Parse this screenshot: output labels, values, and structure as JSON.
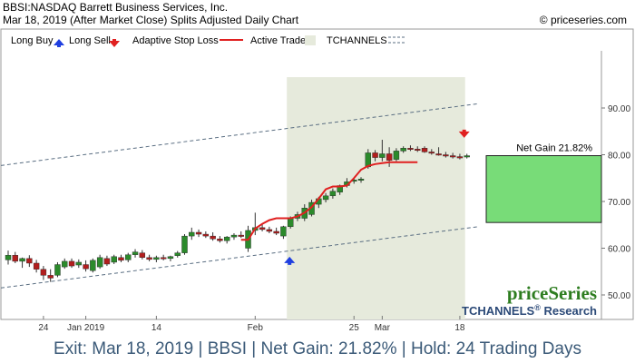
{
  "header": {
    "title": "BBSI:NASDAQ Barrett Business Services, Inc.",
    "subtitle": "Mar 18, 2019 (After Market Close)  Splits Adjusted Daily Chart",
    "copyright": "© priceseries.com"
  },
  "legend": {
    "items": [
      {
        "label": "Long Buy",
        "icon": "up-arrow-icon",
        "color": "#1f3fe0"
      },
      {
        "label": "Long Sell",
        "icon": "down-arrow-icon",
        "color": "#e02020"
      },
      {
        "label": "Adaptive Stop Loss",
        "icon": "red-line-icon",
        "color": "#e02020"
      },
      {
        "label": "Active Trade",
        "icon": "shaded-box-icon",
        "color": "#e6eadc"
      },
      {
        "label": "TCHANNELS",
        "icon": "dashed-line-icon",
        "color": "#5a6e82"
      }
    ]
  },
  "brand": {
    "name": "priceSeries",
    "tagline": "TCHANNELS",
    "tagline_reg": "®",
    "tagline_suffix": " Research"
  },
  "footer": {
    "text": "Exit: Mar 18, 2019 | BBSI | Net Gain: 21.82% | Hold: 24 Trading Days"
  },
  "chart_data": {
    "type": "candlestick",
    "y_axis": {
      "ticks": [
        50,
        60,
        70,
        80,
        90
      ],
      "tick_labels": [
        "50.00",
        "60.00",
        "70.00",
        "80.00",
        "90.00"
      ],
      "side": "right",
      "range": [
        45,
        100
      ]
    },
    "x_axis": {
      "labels": [
        {
          "label": "24",
          "index": 5
        },
        {
          "label": "Jan 2019",
          "index": 11
        },
        {
          "label": "14",
          "index": 21
        },
        {
          "label": "Feb",
          "index": 35
        },
        {
          "label": "25",
          "index": 49
        },
        {
          "label": "Mar",
          "index": 53
        },
        {
          "label": "18",
          "index": 64
        }
      ]
    },
    "candles": [
      {
        "o": 57.5,
        "h": 59.5,
        "l": 56.5,
        "c": 58.5
      },
      {
        "o": 58.5,
        "h": 59.2,
        "l": 56.8,
        "c": 57.2
      },
      {
        "o": 57.2,
        "h": 58.0,
        "l": 55.8,
        "c": 57.8
      },
      {
        "o": 57.8,
        "h": 58.5,
        "l": 56.0,
        "c": 56.8
      },
      {
        "o": 56.8,
        "h": 57.5,
        "l": 54.8,
        "c": 55.5
      },
      {
        "o": 55.5,
        "h": 56.2,
        "l": 53.2,
        "c": 54.2
      },
      {
        "o": 54.2,
        "h": 55.5,
        "l": 52.8,
        "c": 53.6
      },
      {
        "o": 54.2,
        "h": 57.0,
        "l": 53.8,
        "c": 56.5
      },
      {
        "o": 56.0,
        "h": 57.8,
        "l": 55.6,
        "c": 57.2
      },
      {
        "o": 57.2,
        "h": 57.8,
        "l": 55.8,
        "c": 56.2
      },
      {
        "o": 56.4,
        "h": 57.6,
        "l": 55.8,
        "c": 57.0
      },
      {
        "o": 56.5,
        "h": 57.4,
        "l": 55.0,
        "c": 55.6
      },
      {
        "o": 55.2,
        "h": 57.8,
        "l": 54.8,
        "c": 57.4
      },
      {
        "o": 56.0,
        "h": 58.6,
        "l": 55.6,
        "c": 58.0
      },
      {
        "o": 57.8,
        "h": 58.4,
        "l": 56.2,
        "c": 56.6
      },
      {
        "o": 57.0,
        "h": 58.6,
        "l": 56.6,
        "c": 58.2
      },
      {
        "o": 58.0,
        "h": 58.6,
        "l": 57.0,
        "c": 57.4
      },
      {
        "o": 57.5,
        "h": 59.0,
        "l": 57.0,
        "c": 58.6
      },
      {
        "o": 58.6,
        "h": 59.8,
        "l": 58.0,
        "c": 59.2
      },
      {
        "o": 59.0,
        "h": 59.6,
        "l": 57.6,
        "c": 58.0
      },
      {
        "o": 58.0,
        "h": 58.6,
        "l": 57.2,
        "c": 57.6
      },
      {
        "o": 57.6,
        "h": 58.4,
        "l": 57.0,
        "c": 58.0
      },
      {
        "o": 58.0,
        "h": 58.6,
        "l": 57.4,
        "c": 57.8
      },
      {
        "o": 57.8,
        "h": 58.4,
        "l": 57.2,
        "c": 58.2
      },
      {
        "o": 58.4,
        "h": 59.4,
        "l": 58.0,
        "c": 59.0
      },
      {
        "o": 59.0,
        "h": 63.0,
        "l": 58.6,
        "c": 62.6
      },
      {
        "o": 62.6,
        "h": 64.4,
        "l": 61.8,
        "c": 63.4
      },
      {
        "o": 63.4,
        "h": 64.0,
        "l": 62.4,
        "c": 63.0
      },
      {
        "o": 63.0,
        "h": 63.6,
        "l": 62.2,
        "c": 62.6
      },
      {
        "o": 62.6,
        "h": 63.4,
        "l": 61.6,
        "c": 62.0
      },
      {
        "o": 62.0,
        "h": 62.6,
        "l": 61.2,
        "c": 61.6
      },
      {
        "o": 61.6,
        "h": 62.6,
        "l": 61.0,
        "c": 62.4
      },
      {
        "o": 62.4,
        "h": 63.2,
        "l": 61.8,
        "c": 62.8
      },
      {
        "o": 62.8,
        "h": 63.6,
        "l": 62.2,
        "c": 62.6
      },
      {
        "o": 60.0,
        "h": 64.8,
        "l": 59.2,
        "c": 63.8
      },
      {
        "o": 63.8,
        "h": 67.6,
        "l": 62.8,
        "c": 64.4
      },
      {
        "o": 64.4,
        "h": 65.2,
        "l": 63.6,
        "c": 64.0
      },
      {
        "o": 64.0,
        "h": 64.6,
        "l": 63.2,
        "c": 63.6
      },
      {
        "o": 63.6,
        "h": 64.4,
        "l": 62.8,
        "c": 63.2
      },
      {
        "o": 62.6,
        "h": 64.8,
        "l": 62.0,
        "c": 64.6
      },
      {
        "o": 64.6,
        "h": 66.8,
        "l": 64.2,
        "c": 66.4
      },
      {
        "o": 66.4,
        "h": 67.8,
        "l": 65.8,
        "c": 67.2
      },
      {
        "o": 66.4,
        "h": 69.4,
        "l": 65.8,
        "c": 68.6
      },
      {
        "o": 67.2,
        "h": 70.4,
        "l": 66.8,
        "c": 69.8
      },
      {
        "o": 69.4,
        "h": 71.0,
        "l": 68.6,
        "c": 70.6
      },
      {
        "o": 70.4,
        "h": 71.8,
        "l": 69.8,
        "c": 71.2
      },
      {
        "o": 71.2,
        "h": 72.8,
        "l": 70.6,
        "c": 72.2
      },
      {
        "o": 72.0,
        "h": 73.6,
        "l": 71.4,
        "c": 73.4
      },
      {
        "o": 73.4,
        "h": 75.0,
        "l": 73.0,
        "c": 74.2
      },
      {
        "o": 74.4,
        "h": 75.0,
        "l": 73.8,
        "c": 74.6
      },
      {
        "o": 74.6,
        "h": 75.2,
        "l": 74.0,
        "c": 74.8
      },
      {
        "o": 77.4,
        "h": 81.2,
        "l": 77.0,
        "c": 80.4
      },
      {
        "o": 80.4,
        "h": 81.0,
        "l": 78.6,
        "c": 79.4
      },
      {
        "o": 79.4,
        "h": 83.2,
        "l": 78.6,
        "c": 80.2
      },
      {
        "o": 80.2,
        "h": 81.6,
        "l": 77.4,
        "c": 78.8
      },
      {
        "o": 79.0,
        "h": 81.4,
        "l": 78.6,
        "c": 80.8
      },
      {
        "o": 80.8,
        "h": 81.8,
        "l": 80.4,
        "c": 81.4
      },
      {
        "o": 81.4,
        "h": 82.0,
        "l": 80.8,
        "c": 81.2
      },
      {
        "o": 81.2,
        "h": 81.8,
        "l": 80.6,
        "c": 81.0
      },
      {
        "o": 81.4,
        "h": 81.8,
        "l": 80.4,
        "c": 80.6
      },
      {
        "o": 80.6,
        "h": 81.2,
        "l": 80.0,
        "c": 80.4
      },
      {
        "o": 80.2,
        "h": 81.6,
        "l": 79.8,
        "c": 80.0
      },
      {
        "o": 80.0,
        "h": 80.6,
        "l": 79.4,
        "c": 79.8
      },
      {
        "o": 79.8,
        "h": 80.4,
        "l": 79.2,
        "c": 79.6
      },
      {
        "o": 79.6,
        "h": 80.2,
        "l": 79.0,
        "c": 79.4
      },
      {
        "o": 79.6,
        "h": 80.2,
        "l": 79.2,
        "c": 79.8
      }
    ],
    "stop_loss": [
      {
        "i": 33,
        "v": 61.8
      },
      {
        "i": 34,
        "v": 61.8
      },
      {
        "i": 35,
        "v": 64.2
      },
      {
        "i": 36,
        "v": 65.2
      },
      {
        "i": 37,
        "v": 66.0
      },
      {
        "i": 38,
        "v": 66.4
      },
      {
        "i": 39,
        "v": 66.4
      },
      {
        "i": 40,
        "v": 66.4
      },
      {
        "i": 41,
        "v": 66.8
      },
      {
        "i": 42,
        "v": 67.6
      },
      {
        "i": 43,
        "v": 68.8
      },
      {
        "i": 44,
        "v": 70.6
      },
      {
        "i": 45,
        "v": 72.6
      },
      {
        "i": 46,
        "v": 73.2
      },
      {
        "i": 47,
        "v": 73.2
      },
      {
        "i": 48,
        "v": 73.4
      },
      {
        "i": 49,
        "v": 75.0
      },
      {
        "i": 50,
        "v": 76.8
      },
      {
        "i": 51,
        "v": 77.6
      },
      {
        "i": 52,
        "v": 78.0
      },
      {
        "i": 53,
        "v": 78.2
      },
      {
        "i": 54,
        "v": 78.4
      },
      {
        "i": 55,
        "v": 78.4
      },
      {
        "i": 56,
        "v": 78.4
      },
      {
        "i": 57,
        "v": 78.4
      },
      {
        "i": 58,
        "v": 78.4
      }
    ],
    "channel_upper": [
      {
        "i": 0,
        "v": 77.9
      },
      {
        "i": 65,
        "v": 90.6
      }
    ],
    "channel_lower": [
      {
        "i": 0,
        "v": 51.7
      },
      {
        "i": 65,
        "v": 64.3
      }
    ],
    "active_trade": {
      "start_index": 40,
      "end_index": 65,
      "shade_color": "#e6eadc"
    },
    "long_buy": {
      "index": 40,
      "value": 57.4,
      "color": "#1f3fe0"
    },
    "long_sell": {
      "index": 65,
      "value": 84.4,
      "color": "#e02020"
    },
    "net_gain": {
      "label": "Net Gain 21.82%",
      "entry": 65.5,
      "exit": 79.8,
      "color": "#78dc78"
    },
    "grid": false,
    "legend_placement": "top"
  }
}
